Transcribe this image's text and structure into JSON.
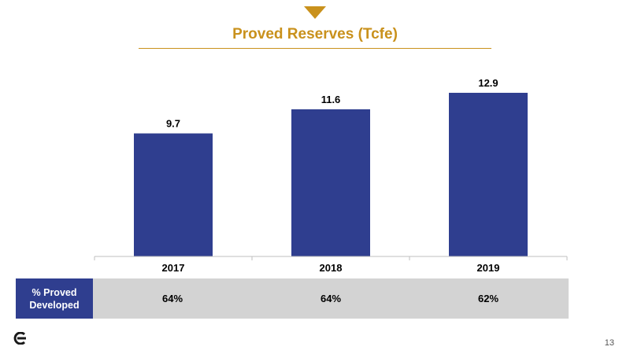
{
  "slide": {
    "title": "Proved Reserves (Tcfe)",
    "page_number": "13"
  },
  "colors": {
    "accent": "#c9911c",
    "bar": "#2f3e8f",
    "band": "#d3d3d3"
  },
  "chart_data": {
    "type": "bar",
    "title": "Proved Reserves (Tcfe)",
    "categories": [
      "2017",
      "2018",
      "2019"
    ],
    "values": [
      9.7,
      11.6,
      12.9
    ],
    "data_labels": [
      "9.7",
      "11.6",
      "12.9"
    ],
    "ylim": [
      0,
      14.2
    ],
    "grid": false,
    "legend": "none"
  },
  "proved_developed": {
    "label": "% Proved Developed",
    "values": [
      "64%",
      "64%",
      "62%"
    ]
  }
}
